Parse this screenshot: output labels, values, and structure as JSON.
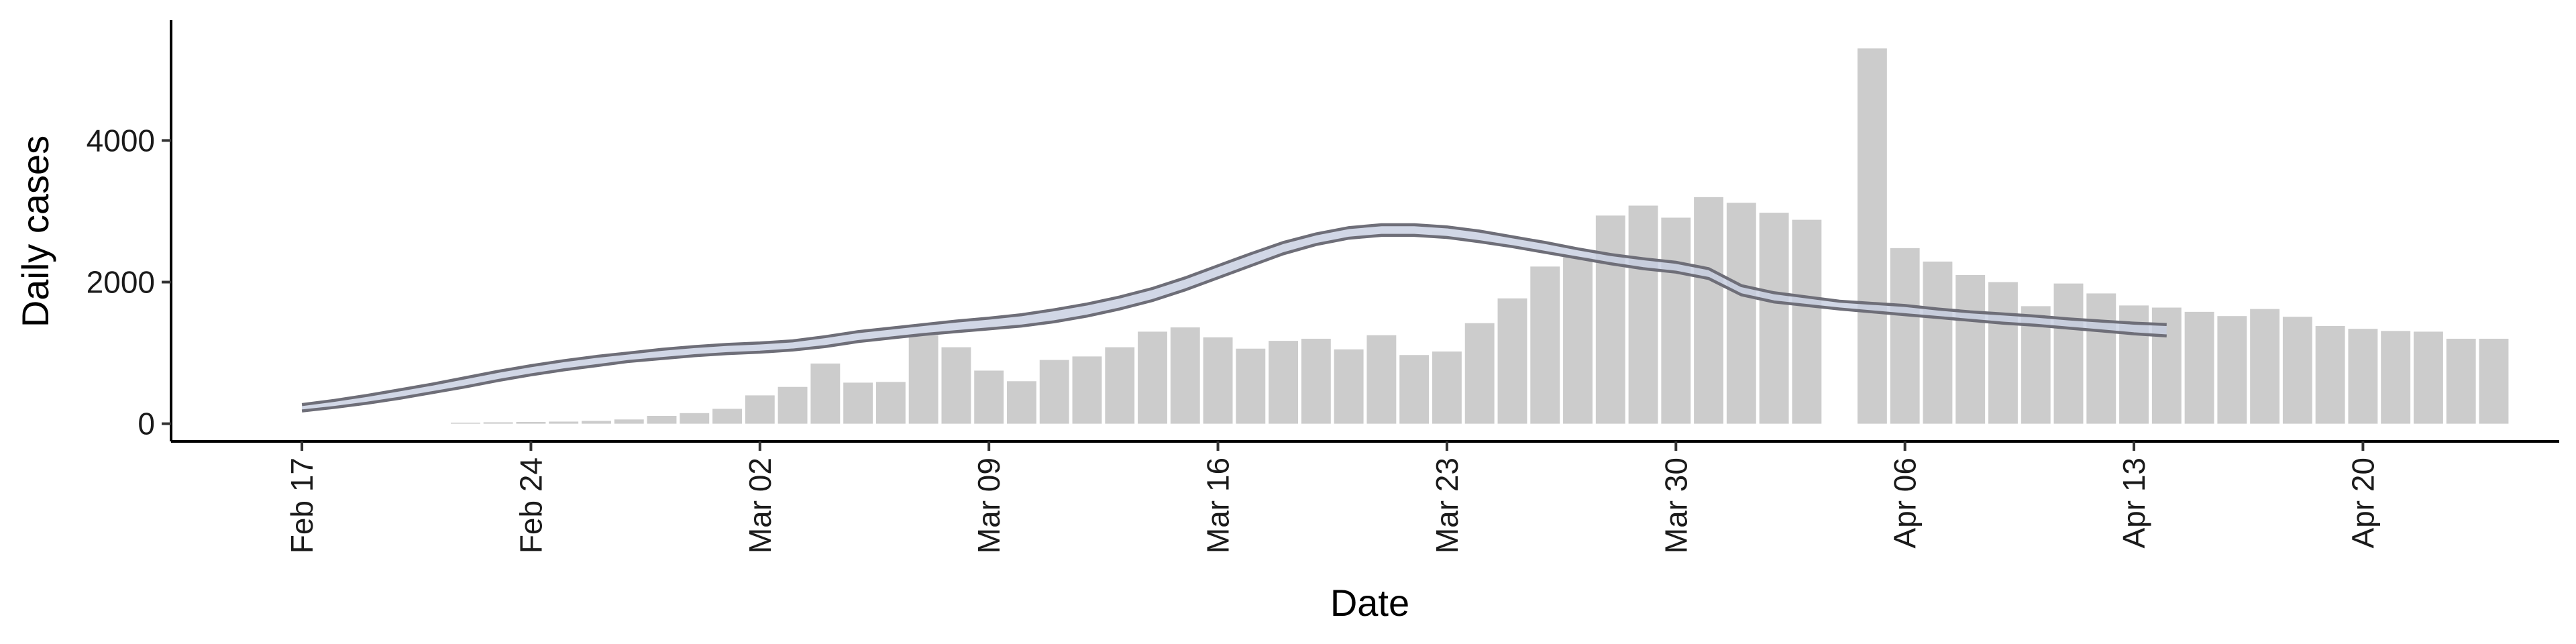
{
  "chart_data": {
    "type": "bar",
    "xlabel": "Date",
    "ylabel": "Daily cases",
    "ylim": [
      -250,
      5700
    ],
    "y_ticks": [
      0,
      2000,
      4000
    ],
    "x_tick_labels": [
      "Feb 17",
      "Feb 24",
      "Mar 02",
      "Mar 09",
      "Mar 16",
      "Mar 23",
      "Mar 30",
      "Apr 06",
      "Apr 13",
      "Apr 20"
    ],
    "x_tick_dates": [
      "2020-02-17",
      "2020-02-24",
      "2020-03-02",
      "2020-03-09",
      "2020-03-16",
      "2020-03-23",
      "2020-03-30",
      "2020-04-06",
      "2020-04-13",
      "2020-04-20"
    ],
    "x_range": [
      "2020-02-13",
      "2020-04-26"
    ],
    "grid": false,
    "bar_color": "#cccccc",
    "band_fill": "#c6cde0",
    "band_edge": "#6e6e78",
    "bars": {
      "dates": [
        "2020-02-22",
        "2020-02-23",
        "2020-02-24",
        "2020-02-25",
        "2020-02-26",
        "2020-02-27",
        "2020-02-28",
        "2020-02-29",
        "2020-03-01",
        "2020-03-02",
        "2020-03-03",
        "2020-03-04",
        "2020-03-05",
        "2020-03-06",
        "2020-03-07",
        "2020-03-08",
        "2020-03-09",
        "2020-03-10",
        "2020-03-11",
        "2020-03-12",
        "2020-03-13",
        "2020-03-14",
        "2020-03-15",
        "2020-03-16",
        "2020-03-17",
        "2020-03-18",
        "2020-03-19",
        "2020-03-20",
        "2020-03-21",
        "2020-03-22",
        "2020-03-23",
        "2020-03-24",
        "2020-03-25",
        "2020-03-26",
        "2020-03-27",
        "2020-03-28",
        "2020-03-29",
        "2020-03-30",
        "2020-03-31",
        "2020-04-01",
        "2020-04-02",
        "2020-04-03",
        "2020-04-05",
        "2020-04-06",
        "2020-04-07",
        "2020-04-08",
        "2020-04-09",
        "2020-04-10",
        "2020-04-11",
        "2020-04-12",
        "2020-04-13",
        "2020-04-14",
        "2020-04-15",
        "2020-04-16",
        "2020-04-17",
        "2020-04-18",
        "2020-04-19",
        "2020-04-20",
        "2020-04-21",
        "2020-04-22",
        "2020-04-23",
        "2020-04-24"
      ],
      "values": [
        15,
        20,
        25,
        30,
        40,
        60,
        110,
        150,
        210,
        400,
        520,
        850,
        580,
        590,
        1250,
        1080,
        750,
        600,
        900,
        950,
        1080,
        1300,
        1360,
        1220,
        1060,
        1170,
        1200,
        1050,
        1250,
        970,
        1020,
        1420,
        1770,
        2220,
        2350,
        2940,
        3080,
        2910,
        3200,
        3120,
        2980,
        2880,
        5300,
        2480,
        2290,
        2100,
        2000,
        1660,
        1980,
        1840,
        1670,
        1640,
        1580,
        1520,
        1620,
        1510,
        1380,
        1340,
        1310,
        1300,
        1200,
        1200
      ]
    },
    "band": {
      "dates": [
        "2020-02-17",
        "2020-02-18",
        "2020-02-19",
        "2020-02-20",
        "2020-02-21",
        "2020-02-22",
        "2020-02-23",
        "2020-02-24",
        "2020-02-25",
        "2020-02-26",
        "2020-02-27",
        "2020-02-28",
        "2020-02-29",
        "2020-03-01",
        "2020-03-02",
        "2020-03-03",
        "2020-03-04",
        "2020-03-05",
        "2020-03-06",
        "2020-03-07",
        "2020-03-08",
        "2020-03-09",
        "2020-03-10",
        "2020-03-11",
        "2020-03-12",
        "2020-03-13",
        "2020-03-14",
        "2020-03-15",
        "2020-03-16",
        "2020-03-17",
        "2020-03-18",
        "2020-03-19",
        "2020-03-20",
        "2020-03-21",
        "2020-03-22",
        "2020-03-23",
        "2020-03-24",
        "2020-03-25",
        "2020-03-26",
        "2020-03-27",
        "2020-03-28",
        "2020-03-29",
        "2020-03-30",
        "2020-03-31",
        "2020-04-01",
        "2020-04-02",
        "2020-04-03",
        "2020-04-04",
        "2020-04-05",
        "2020-04-06",
        "2020-04-07",
        "2020-04-08",
        "2020-04-09",
        "2020-04-10",
        "2020-04-11",
        "2020-04-12",
        "2020-04-13",
        "2020-04-14"
      ],
      "upper": [
        270,
        330,
        400,
        480,
        560,
        650,
        740,
        820,
        890,
        950,
        1000,
        1050,
        1090,
        1120,
        1140,
        1170,
        1230,
        1300,
        1350,
        1400,
        1450,
        1490,
        1540,
        1610,
        1690,
        1790,
        1910,
        2060,
        2230,
        2400,
        2560,
        2680,
        2770,
        2810,
        2810,
        2780,
        2720,
        2640,
        2560,
        2470,
        2390,
        2330,
        2280,
        2190,
        1950,
        1850,
        1790,
        1730,
        1700,
        1670,
        1620,
        1580,
        1550,
        1520,
        1480,
        1450,
        1420,
        1400
      ],
      "lower": [
        180,
        230,
        290,
        360,
        440,
        520,
        610,
        690,
        760,
        820,
        880,
        920,
        960,
        990,
        1010,
        1040,
        1090,
        1160,
        1210,
        1260,
        1300,
        1340,
        1380,
        1440,
        1520,
        1620,
        1740,
        1890,
        2060,
        2230,
        2400,
        2530,
        2620,
        2660,
        2660,
        2630,
        2570,
        2500,
        2420,
        2340,
        2260,
        2190,
        2140,
        2050,
        1820,
        1720,
        1670,
        1620,
        1580,
        1540,
        1500,
        1460,
        1420,
        1390,
        1350,
        1310,
        1270,
        1240
      ]
    }
  }
}
